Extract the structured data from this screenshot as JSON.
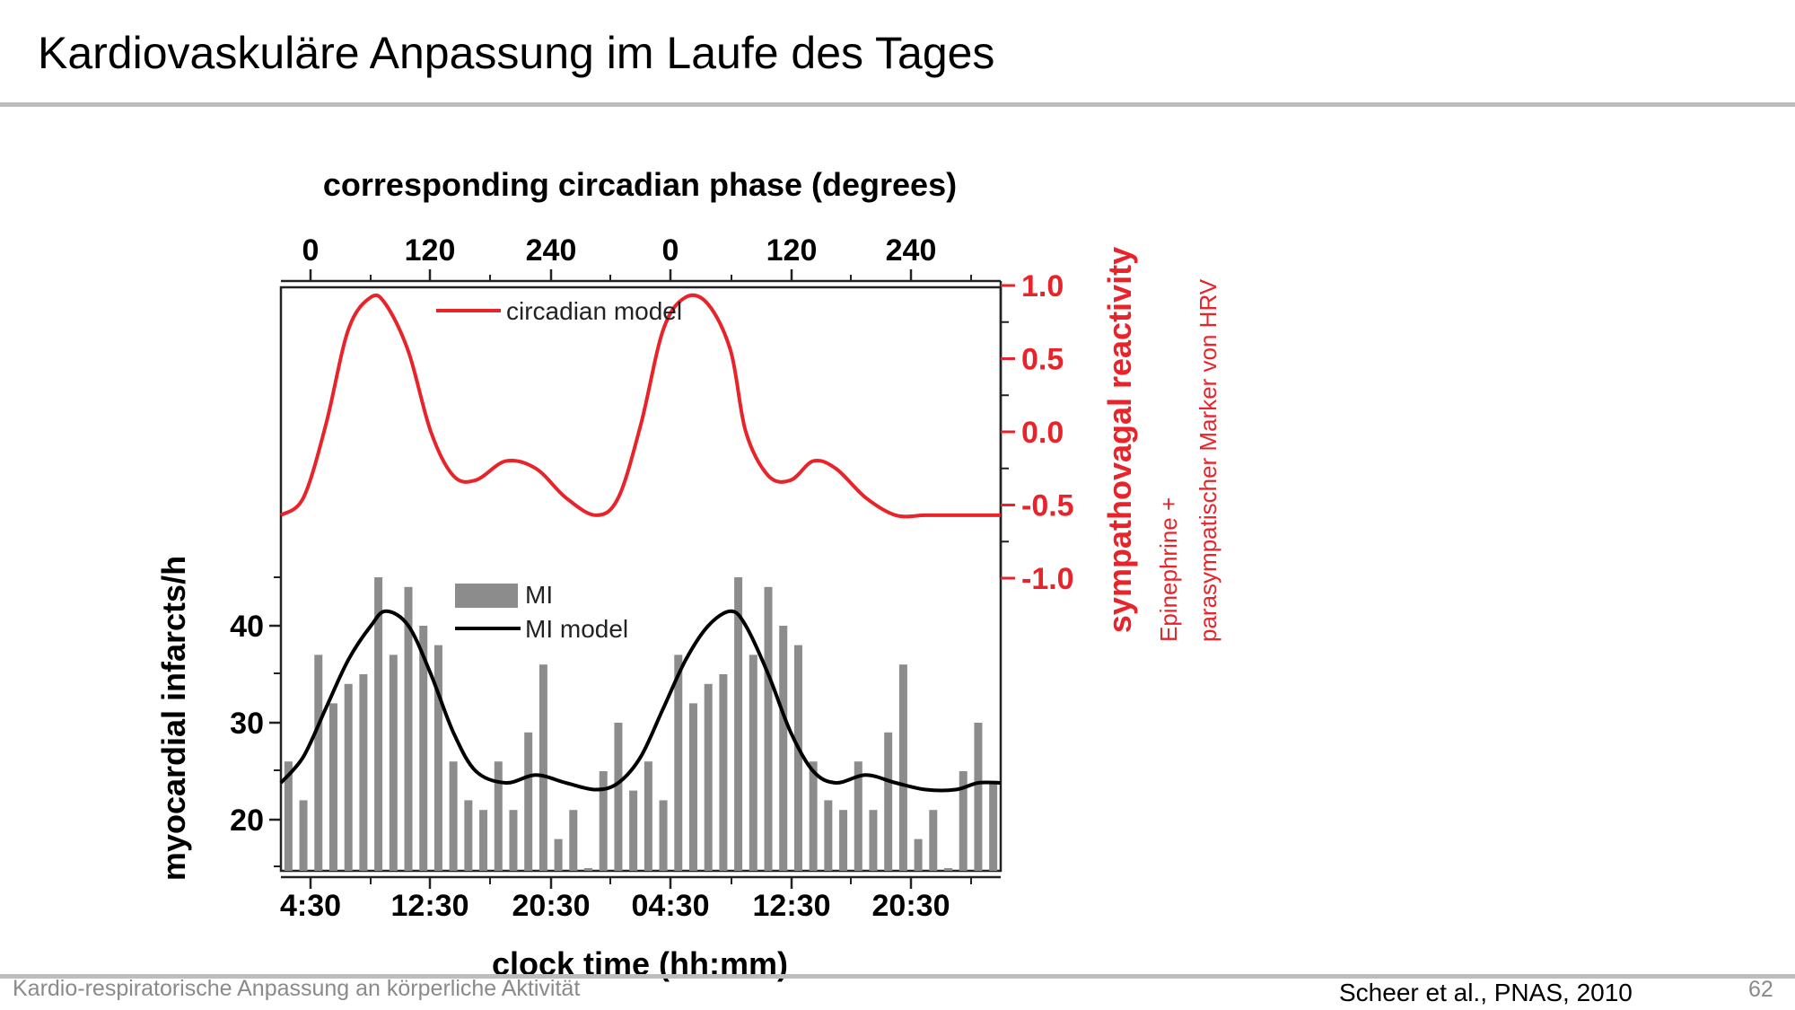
{
  "slide": {
    "title": "Kardiovaskuläre Anpassung im Laufe des Tages",
    "footer": "Kardio-respiratorische Anpassung an körperliche Aktivität",
    "citation": "Scheer et al., PNAS, 2010",
    "page_number": "62"
  },
  "colors": {
    "red_series": "#e8232a",
    "bars": "#8c8c8c",
    "model_line": "#000000",
    "annotation_red": "#e8232a",
    "rule": "#bdbdbd"
  },
  "chart_data": {
    "type": "bar",
    "top_axis": {
      "label": "corresponding circadian phase (degrees)",
      "tick_labels": [
        "0",
        "120",
        "240",
        "0",
        "120",
        "240"
      ]
    },
    "bottom_axis": {
      "label": "clock time (hh:mm)",
      "tick_labels": [
        "4:30",
        "12:30",
        "20:30",
        "04:30",
        "12:30",
        "20:30"
      ]
    },
    "left_axis": {
      "label": "myocardial infarcts/h",
      "tick_labels": [
        "20",
        "30",
        "40"
      ],
      "range": [
        15,
        45
      ]
    },
    "right_axis": {
      "label": "sympathovagal reactivity",
      "tick_labels": [
        "1.0",
        "0.5",
        "0.0",
        "-0.5",
        "-1.0"
      ],
      "range": [
        -1.0,
        1.0
      ]
    },
    "annotation_lines": [
      "Epinephrine +",
      "parasympatischer  Marker von HRV"
    ],
    "legend_top": [
      "circadian model"
    ],
    "legend_bottom": [
      "MI",
      "MI model"
    ],
    "x_hours": {
      "start": 3.0,
      "end": 51.0,
      "cycle": 24
    },
    "series": [
      {
        "name": "MI",
        "type": "bar",
        "values": [
          26,
          22,
          37,
          32,
          34,
          35,
          45,
          37,
          44,
          40,
          38,
          26,
          22,
          21,
          26,
          21,
          29,
          36,
          18,
          21,
          15,
          25,
          30,
          23,
          26,
          22,
          37,
          32,
          34,
          35,
          45,
          37,
          44,
          40,
          38,
          26,
          22,
          21,
          26,
          21,
          29,
          36,
          18,
          21,
          15,
          25,
          30,
          24
        ]
      },
      {
        "name": "MI model",
        "type": "line",
        "x": [
          3,
          4.5,
          6,
          7.5,
          9,
          10,
          11.5,
          13,
          14.5,
          16,
          18,
          20,
          22,
          24,
          25.5,
          27,
          28.5,
          30,
          31.5,
          33,
          34,
          35.5,
          37,
          38.5,
          40,
          42,
          44,
          46,
          48,
          49.5,
          51
        ],
        "y": [
          23.8,
          26.5,
          31.5,
          36.5,
          40.0,
          41.5,
          40.0,
          35.0,
          29.0,
          25.0,
          23.8,
          24.6,
          23.8,
          23.1,
          23.8,
          26.5,
          31.5,
          36.5,
          40.0,
          41.5,
          40.0,
          35.0,
          29.0,
          25.0,
          23.8,
          24.6,
          23.8,
          23.1,
          23.1,
          23.8,
          23.8
        ]
      },
      {
        "name": "circadian model",
        "type": "line",
        "x": [
          3,
          4.5,
          6,
          7.5,
          9,
          10,
          11.5,
          13,
          14.5,
          16,
          18,
          20,
          22,
          24,
          25.5,
          27,
          28.5,
          30,
          31.5,
          33,
          34,
          35.5,
          37,
          38.5,
          40,
          42,
          44,
          46,
          48,
          49.5,
          51
        ],
        "y": [
          -0.57,
          -0.45,
          0.05,
          0.7,
          0.92,
          0.87,
          0.55,
          0.0,
          -0.3,
          -0.33,
          -0.2,
          -0.25,
          -0.45,
          -0.57,
          -0.45,
          0.05,
          0.7,
          0.92,
          0.87,
          0.55,
          0.0,
          -0.3,
          -0.33,
          -0.2,
          -0.25,
          -0.45,
          -0.57,
          -0.57,
          -0.57,
          -0.57,
          -0.57
        ]
      }
    ]
  }
}
